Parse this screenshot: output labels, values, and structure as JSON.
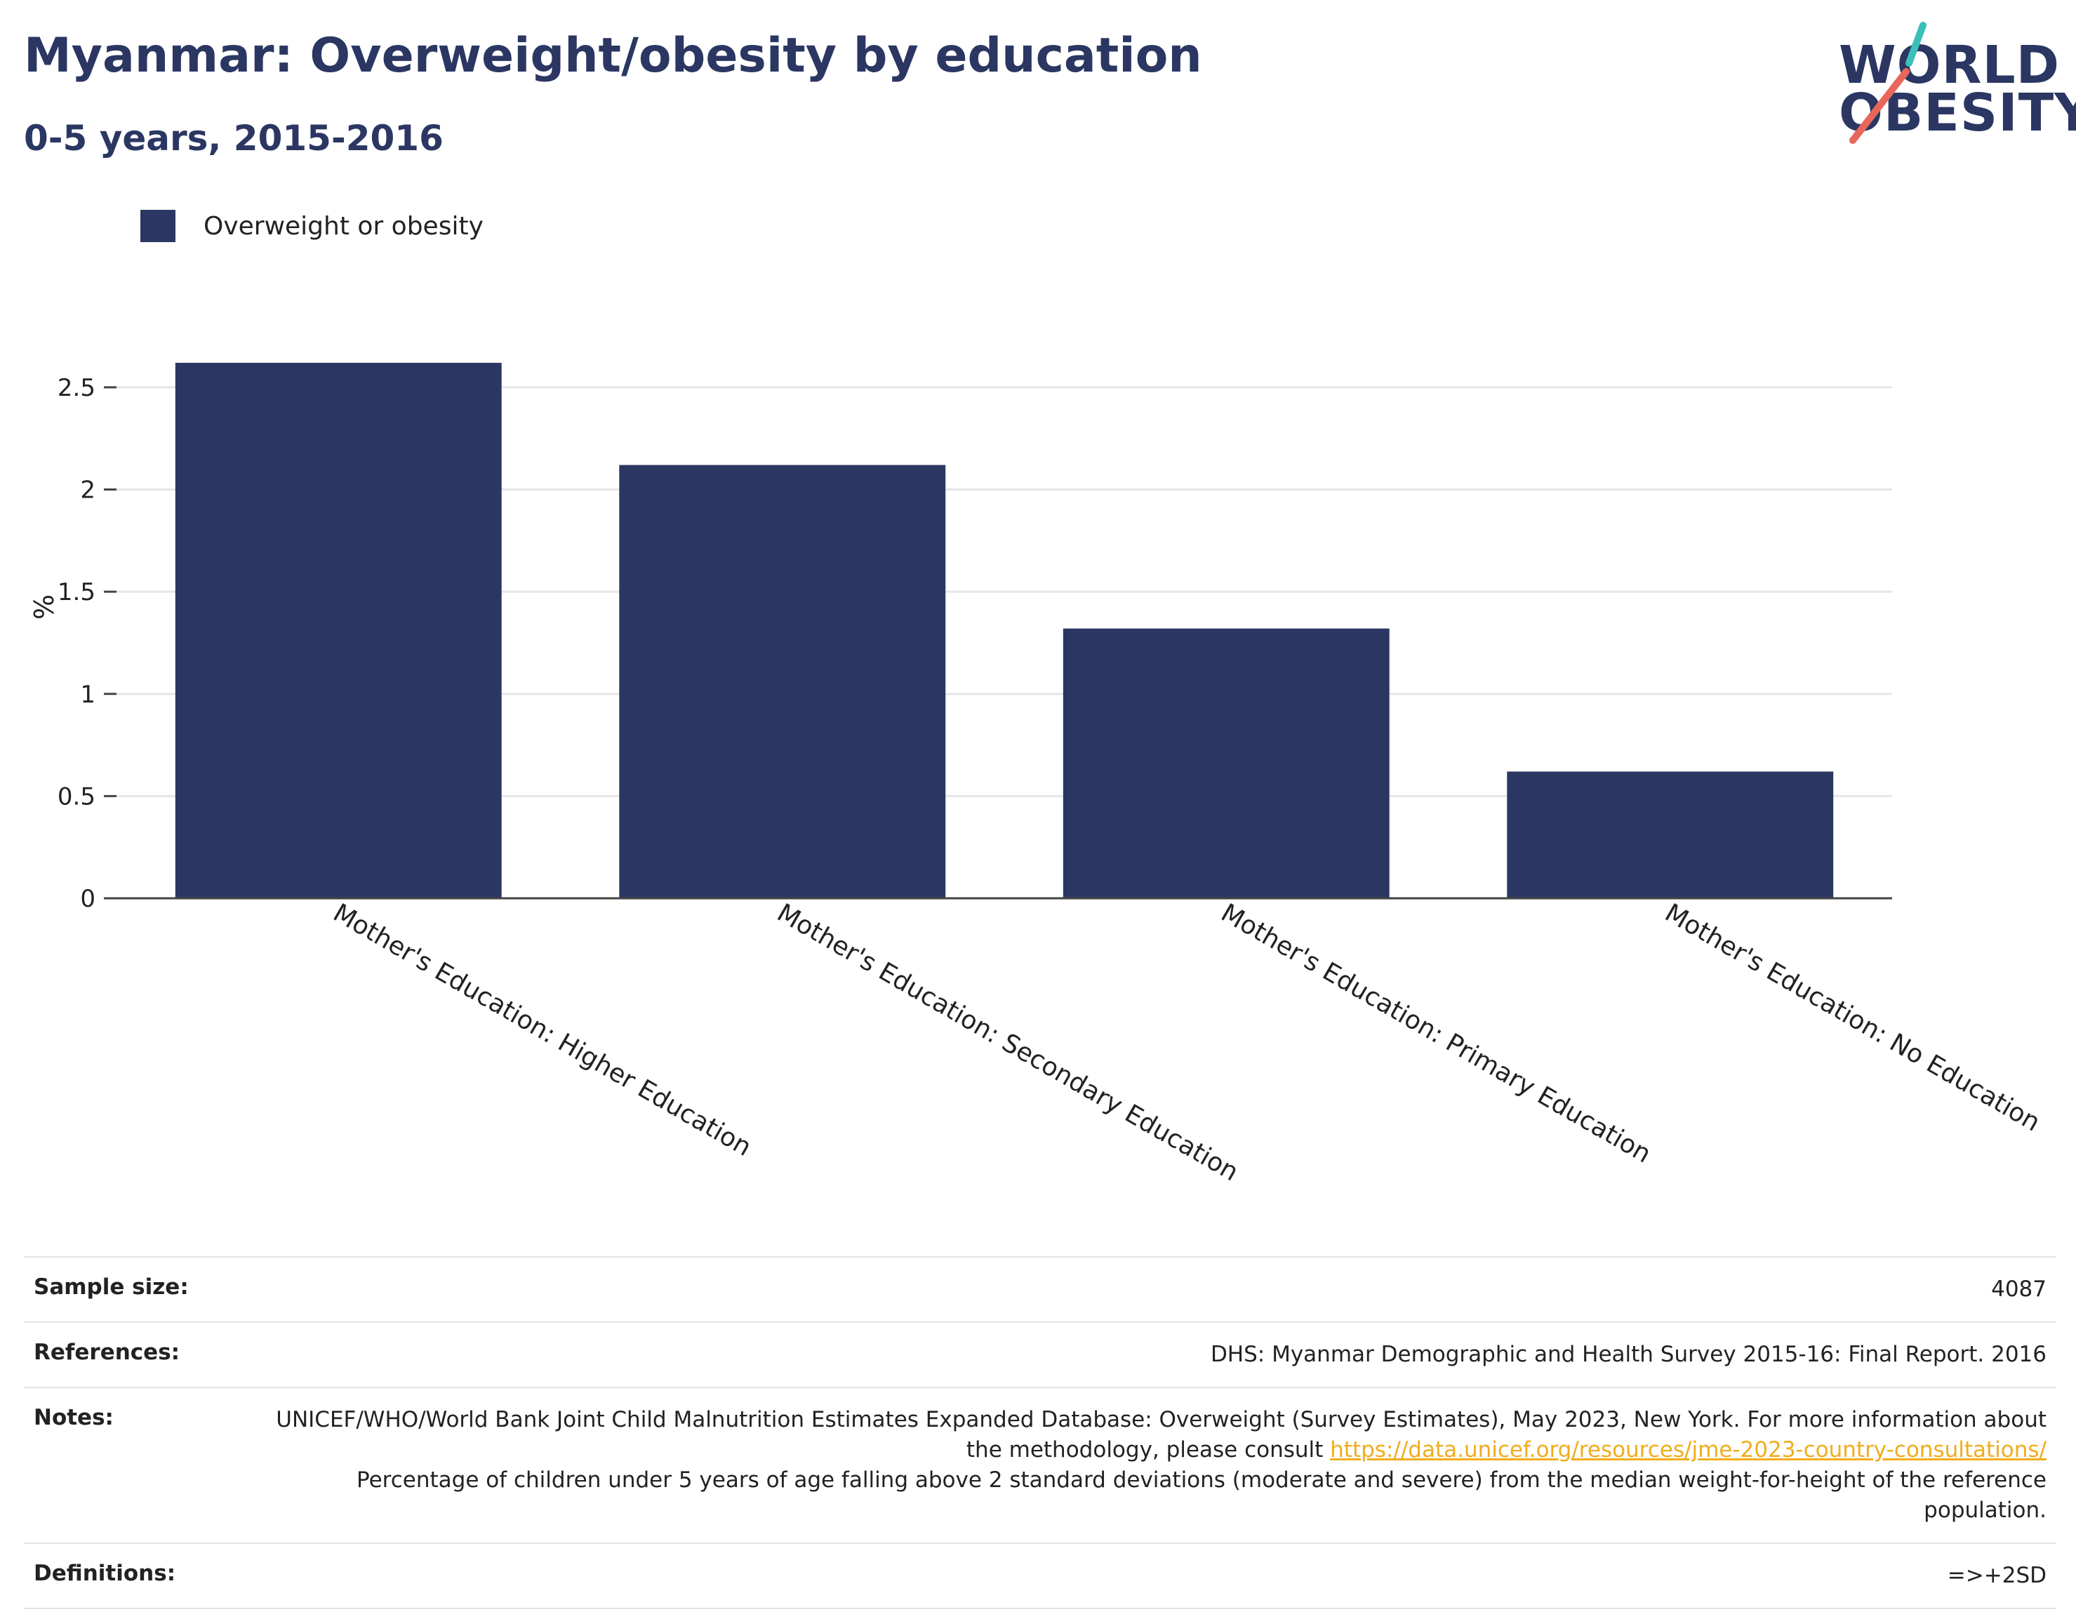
{
  "header": {
    "title": "Myanmar: Overweight/obesity by education",
    "subtitle": "0-5 years, 2015-2016"
  },
  "logo": {
    "line1": "WORLD",
    "line2": "OBESITY",
    "colors": {
      "text": "#2b3762",
      "slash_top": "#3bbfb9",
      "slash_bottom": "#e8675a"
    }
  },
  "legend": {
    "label": "Overweight or obesity"
  },
  "chart_data": {
    "type": "bar",
    "categories": [
      "Mother's Education: Higher Education",
      "Mother's Education: Secondary Education",
      "Mother's Education: Primary Education",
      "Mother's Education: No Education"
    ],
    "series": [
      {
        "name": "Overweight or obesity",
        "values": [
          2.62,
          2.12,
          1.32,
          0.62
        ],
        "color": "#2b3762"
      }
    ],
    "ylabel": "%",
    "xlabel": "",
    "ylim": [
      0,
      2.85
    ],
    "yticks": [
      0,
      0.5,
      1,
      1.5,
      2,
      2.5
    ],
    "ytick_labels": [
      "0",
      "0.5",
      "1",
      "1.5",
      "2",
      "2.5"
    ],
    "grid": true,
    "legend_position": "top-left"
  },
  "info": {
    "sample_size": {
      "label": "Sample size:",
      "value": "4087"
    },
    "references": {
      "label": "References:",
      "value": "DHS: Myanmar Demographic and Health Survey 2015-16: Final Report. 2016"
    },
    "notes": {
      "label": "Notes:",
      "text1": "UNICEF/WHO/World Bank Joint Child Malnutrition Estimates Expanded Database: Overweight (Survey Estimates), May 2023, New York. For more information about the methodology, please consult ",
      "link": "https://data.unicef.org/resources/jme-2023-country-consultations/",
      "text2": "Percentage of children under 5 years of age falling above 2 standard deviations (moderate and severe) from the median weight-for-height of the reference population."
    },
    "definitions": {
      "label": "Definitions:",
      "value": "=>+2SD"
    }
  }
}
